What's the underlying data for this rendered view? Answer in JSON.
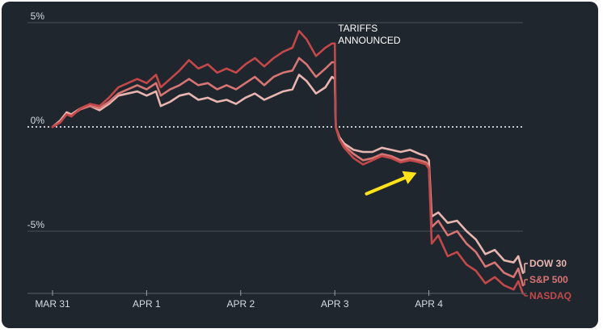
{
  "chart_data": {
    "type": "line",
    "title": "",
    "xlabel": "",
    "ylabel": "",
    "ylim": [
      -8,
      5.2
    ],
    "x_range": [
      0,
      5
    ],
    "x_ticks": [
      {
        "x": 0,
        "label": "MAR 31"
      },
      {
        "x": 1,
        "label": "APR 1"
      },
      {
        "x": 2,
        "label": "APR 2"
      },
      {
        "x": 3,
        "label": "APR 3"
      },
      {
        "x": 4,
        "label": "APR 4"
      }
    ],
    "y_ticks": [
      {
        "y": 5,
        "label": "5%"
      },
      {
        "y": 0,
        "label": "0%"
      },
      {
        "y": -5,
        "label": "-5%"
      }
    ],
    "grid": "horizontal",
    "zero_line": "dotted",
    "annotations": [
      {
        "x": 3,
        "y": 4.1,
        "lines": [
          "TARIFFS",
          "ANNOUNCED"
        ]
      },
      {
        "x": 3.87,
        "y": -2.2,
        "type": "arrow",
        "color": "#ffe21a"
      }
    ],
    "series": [
      {
        "name": "DOW 30",
        "color": "#e8b5b0",
        "points": [
          [
            0,
            0
          ],
          [
            0.08,
            0.3
          ],
          [
            0.15,
            0.7
          ],
          [
            0.2,
            0.6
          ],
          [
            0.3,
            0.9
          ],
          [
            0.4,
            1.0
          ],
          [
            0.5,
            0.8
          ],
          [
            0.6,
            1.1
          ],
          [
            0.7,
            1.5
          ],
          [
            0.8,
            1.6
          ],
          [
            0.9,
            1.7
          ],
          [
            1.0,
            1.5
          ],
          [
            1.1,
            1.7
          ],
          [
            1.15,
            1.0
          ],
          [
            1.25,
            1.2
          ],
          [
            1.35,
            1.5
          ],
          [
            1.45,
            1.6
          ],
          [
            1.55,
            1.3
          ],
          [
            1.65,
            1.4
          ],
          [
            1.75,
            1.2
          ],
          [
            1.85,
            1.3
          ],
          [
            1.95,
            1.1
          ],
          [
            2.05,
            1.4
          ],
          [
            2.15,
            1.6
          ],
          [
            2.25,
            1.3
          ],
          [
            2.35,
            1.5
          ],
          [
            2.45,
            1.7
          ],
          [
            2.55,
            1.8
          ],
          [
            2.62,
            2.5
          ],
          [
            2.7,
            2.2
          ],
          [
            2.8,
            1.6
          ],
          [
            2.9,
            1.9
          ],
          [
            2.97,
            2.4
          ],
          [
            3.0,
            2.3
          ],
          [
            3.01,
            0.0
          ],
          [
            3.05,
            -0.5
          ],
          [
            3.1,
            -0.8
          ],
          [
            3.2,
            -1.1
          ],
          [
            3.3,
            -1.2
          ],
          [
            3.4,
            -1.2
          ],
          [
            3.5,
            -1.0
          ],
          [
            3.6,
            -1.1
          ],
          [
            3.7,
            -1.2
          ],
          [
            3.8,
            -1.1
          ],
          [
            3.9,
            -1.3
          ],
          [
            3.97,
            -1.4
          ],
          [
            4.0,
            -1.6
          ],
          [
            4.03,
            -4.3
          ],
          [
            4.1,
            -4.1
          ],
          [
            4.2,
            -4.6
          ],
          [
            4.3,
            -4.5
          ],
          [
            4.4,
            -5.0
          ],
          [
            4.5,
            -5.4
          ],
          [
            4.6,
            -6.1
          ],
          [
            4.7,
            -5.9
          ],
          [
            4.8,
            -6.4
          ],
          [
            4.9,
            -6.5
          ],
          [
            4.95,
            -6.2
          ],
          [
            5.0,
            -7.0
          ]
        ]
      },
      {
        "name": "S&P 500",
        "color": "#d77575",
        "points": [
          [
            0,
            0
          ],
          [
            0.08,
            0.25
          ],
          [
            0.15,
            0.6
          ],
          [
            0.2,
            0.55
          ],
          [
            0.3,
            0.85
          ],
          [
            0.4,
            1.0
          ],
          [
            0.5,
            0.9
          ],
          [
            0.6,
            1.2
          ],
          [
            0.7,
            1.6
          ],
          [
            0.8,
            1.8
          ],
          [
            0.9,
            2.0
          ],
          [
            1.0,
            1.8
          ],
          [
            1.1,
            2.1
          ],
          [
            1.15,
            1.5
          ],
          [
            1.25,
            1.8
          ],
          [
            1.35,
            2.0
          ],
          [
            1.45,
            2.3
          ],
          [
            1.55,
            2.0
          ],
          [
            1.65,
            2.1
          ],
          [
            1.75,
            1.8
          ],
          [
            1.85,
            2.0
          ],
          [
            1.95,
            1.8
          ],
          [
            2.05,
            2.1
          ],
          [
            2.15,
            2.4
          ],
          [
            2.25,
            2.0
          ],
          [
            2.35,
            2.4
          ],
          [
            2.45,
            2.6
          ],
          [
            2.55,
            2.7
          ],
          [
            2.62,
            3.3
          ],
          [
            2.7,
            3.0
          ],
          [
            2.8,
            2.4
          ],
          [
            2.9,
            2.8
          ],
          [
            2.97,
            3.1
          ],
          [
            3.0,
            3.1
          ],
          [
            3.01,
            0.0
          ],
          [
            3.05,
            -0.6
          ],
          [
            3.1,
            -0.9
          ],
          [
            3.2,
            -1.3
          ],
          [
            3.3,
            -1.6
          ],
          [
            3.4,
            -1.5
          ],
          [
            3.5,
            -1.3
          ],
          [
            3.6,
            -1.4
          ],
          [
            3.7,
            -1.6
          ],
          [
            3.8,
            -1.5
          ],
          [
            3.9,
            -1.6
          ],
          [
            3.97,
            -1.7
          ],
          [
            4.0,
            -1.9
          ],
          [
            4.03,
            -4.8
          ],
          [
            4.1,
            -4.5
          ],
          [
            4.2,
            -5.2
          ],
          [
            4.3,
            -5.0
          ],
          [
            4.4,
            -5.6
          ],
          [
            4.5,
            -6.0
          ],
          [
            4.6,
            -6.7
          ],
          [
            4.7,
            -6.5
          ],
          [
            4.8,
            -7.0
          ],
          [
            4.9,
            -7.2
          ],
          [
            4.95,
            -6.8
          ],
          [
            5.0,
            -7.6
          ]
        ]
      },
      {
        "name": "NASDAQ",
        "color": "#c2484a",
        "points": [
          [
            0,
            0
          ],
          [
            0.08,
            0.2
          ],
          [
            0.15,
            0.6
          ],
          [
            0.2,
            0.5
          ],
          [
            0.3,
            0.9
          ],
          [
            0.4,
            1.1
          ],
          [
            0.5,
            1.0
          ],
          [
            0.6,
            1.4
          ],
          [
            0.7,
            1.9
          ],
          [
            0.8,
            2.1
          ],
          [
            0.9,
            2.3
          ],
          [
            1.0,
            2.1
          ],
          [
            1.1,
            2.5
          ],
          [
            1.15,
            1.9
          ],
          [
            1.25,
            2.3
          ],
          [
            1.35,
            2.7
          ],
          [
            1.45,
            3.2
          ],
          [
            1.55,
            2.8
          ],
          [
            1.65,
            3.0
          ],
          [
            1.75,
            2.6
          ],
          [
            1.85,
            2.8
          ],
          [
            1.95,
            2.6
          ],
          [
            2.05,
            3.0
          ],
          [
            2.15,
            3.3
          ],
          [
            2.25,
            2.9
          ],
          [
            2.35,
            3.3
          ],
          [
            2.45,
            3.6
          ],
          [
            2.55,
            3.8
          ],
          [
            2.62,
            4.6
          ],
          [
            2.7,
            4.2
          ],
          [
            2.8,
            3.4
          ],
          [
            2.9,
            3.8
          ],
          [
            2.97,
            4.0
          ],
          [
            3.0,
            4.0
          ],
          [
            3.01,
            0.0
          ],
          [
            3.05,
            -0.6
          ],
          [
            3.1,
            -1.0
          ],
          [
            3.2,
            -1.5
          ],
          [
            3.3,
            -1.8
          ],
          [
            3.4,
            -1.6
          ],
          [
            3.5,
            -1.4
          ],
          [
            3.6,
            -1.5
          ],
          [
            3.7,
            -1.7
          ],
          [
            3.8,
            -1.6
          ],
          [
            3.9,
            -1.7
          ],
          [
            3.97,
            -1.8
          ],
          [
            4.0,
            -2.0
          ],
          [
            4.03,
            -5.6
          ],
          [
            4.1,
            -5.2
          ],
          [
            4.2,
            -6.2
          ],
          [
            4.3,
            -6.0
          ],
          [
            4.4,
            -6.6
          ],
          [
            4.5,
            -6.9
          ],
          [
            4.6,
            -7.5
          ],
          [
            4.7,
            -7.2
          ],
          [
            4.8,
            -7.6
          ],
          [
            4.9,
            -7.8
          ],
          [
            4.95,
            -7.4
          ],
          [
            5.0,
            -8.0
          ]
        ]
      }
    ],
    "legend": [
      {
        "label": "DOW 30",
        "color": "#e8b5b0"
      },
      {
        "label": "S&P 500",
        "color": "#d77575"
      },
      {
        "label": "NASDAQ",
        "color": "#c2484a"
      }
    ]
  }
}
